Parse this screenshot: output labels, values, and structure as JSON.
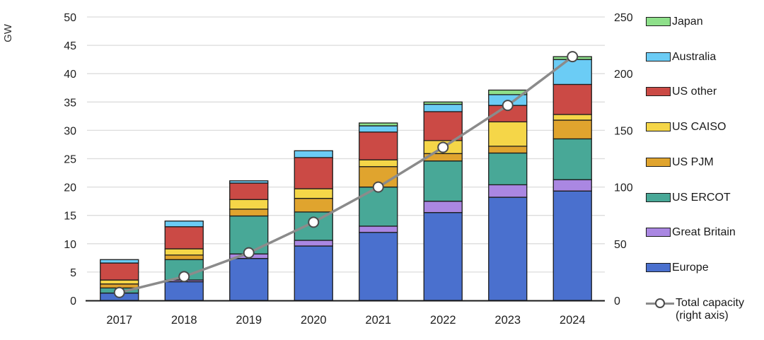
{
  "chart_data": {
    "type": "bar",
    "stacked": true,
    "title": "",
    "ylabel_left": "GW",
    "grid": true,
    "legend_position": "right",
    "categories": [
      "2017",
      "2018",
      "2019",
      "2020",
      "2021",
      "2022",
      "2023",
      "2024"
    ],
    "series": [
      {
        "name": "Europe",
        "color": "#4a70ce",
        "values": [
          1.3,
          3.3,
          7.4,
          9.6,
          12.0,
          15.5,
          18.2,
          19.3
        ]
      },
      {
        "name": "Great Britain",
        "color": "#aa87e2",
        "values": [
          0,
          0.3,
          0.8,
          1.0,
          1.1,
          2.0,
          2.2,
          2.0
        ]
      },
      {
        "name": "US ERCOT",
        "color": "#48a897",
        "values": [
          0.9,
          3.6,
          6.7,
          5.0,
          6.9,
          7.1,
          5.6,
          7.2
        ]
      },
      {
        "name": "US PJM",
        "color": "#e0a42e",
        "values": [
          0.7,
          0.8,
          1.2,
          2.4,
          3.6,
          1.3,
          1.2,
          3.3
        ]
      },
      {
        "name": "US CAISO",
        "color": "#f5d648",
        "values": [
          0.7,
          1.1,
          1.7,
          1.7,
          1.2,
          2.3,
          4.3,
          1.0
        ]
      },
      {
        "name": "US other",
        "color": "#cb4a45",
        "values": [
          3.0,
          3.9,
          2.9,
          5.5,
          4.9,
          5.1,
          2.9,
          5.3
        ]
      },
      {
        "name": "Australia",
        "color": "#6bccf5",
        "values": [
          0.6,
          1.0,
          0.4,
          1.2,
          1.1,
          1.3,
          1.9,
          4.4
        ]
      },
      {
        "name": "Japan",
        "color": "#8ee08a",
        "values": [
          0,
          0,
          0,
          0,
          0.5,
          0.4,
          0.8,
          0.5
        ]
      }
    ],
    "line_series": {
      "name": "Total capacity (right axis)",
      "color": "#8b8b8b",
      "marker": "open-circle",
      "values": [
        7,
        21,
        42,
        69,
        100,
        135,
        172,
        215
      ]
    },
    "y_left": {
      "min": 0,
      "max": 50,
      "step": 5,
      "ticks": [
        "0",
        "5",
        "10",
        "15",
        "20",
        "25",
        "30",
        "35",
        "40",
        "45",
        "50"
      ]
    },
    "y_right": {
      "min": 0,
      "max": 250,
      "step": 50,
      "ticks": [
        "0",
        "50",
        "100",
        "150",
        "200",
        "250"
      ]
    }
  },
  "legend": {
    "items": [
      {
        "label": "Japan",
        "color": "#8ee08a",
        "swatch": "box"
      },
      {
        "label": "Australia",
        "color": "#6bccf5",
        "swatch": "box"
      },
      {
        "label": "US other",
        "color": "#cb4a45",
        "swatch": "box"
      },
      {
        "label": "US CAISO",
        "color": "#f5d648",
        "swatch": "box"
      },
      {
        "label": "US PJM",
        "color": "#e0a42e",
        "swatch": "box"
      },
      {
        "label": "US ERCOT",
        "color": "#48a897",
        "swatch": "box"
      },
      {
        "label": "Great Britain",
        "color": "#aa87e2",
        "swatch": "box"
      },
      {
        "label": "Europe",
        "color": "#4a70ce",
        "swatch": "box"
      },
      {
        "label": "Total capacity",
        "label2": "(right axis)",
        "color": "#8b8b8b",
        "swatch": "line"
      }
    ]
  },
  "colors": {
    "gridline": "#dcdcdc",
    "axis_line": "#1a1a1a",
    "segment_outline": "#1c1c1c",
    "text": "#1f1f1f",
    "line": "#8b8b8b",
    "marker_fill": "#ffffff",
    "marker_stroke": "#4a4a4a"
  }
}
